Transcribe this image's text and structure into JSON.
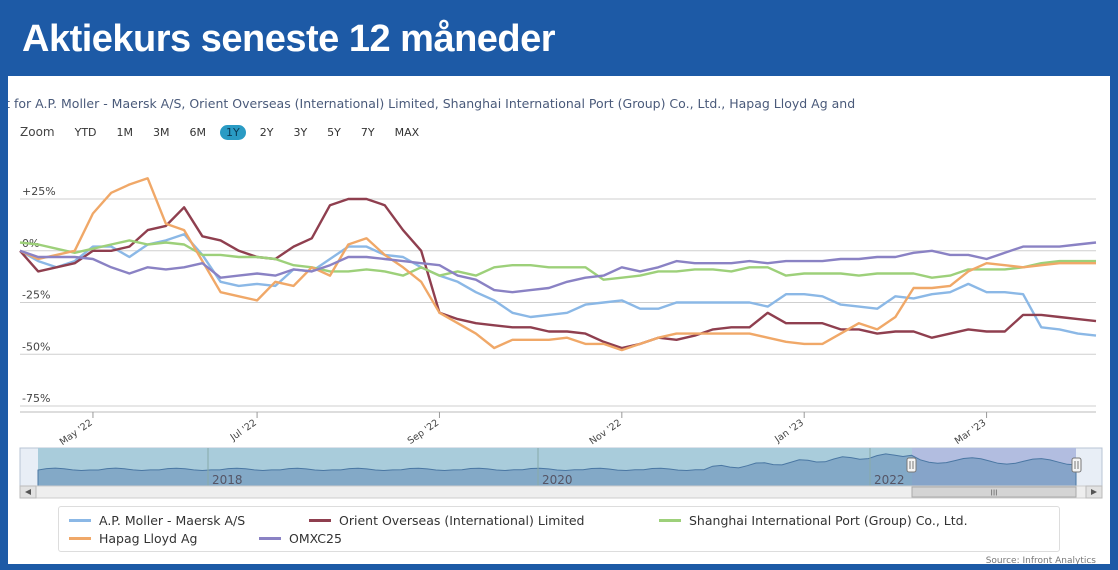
{
  "header": {
    "title": "Aktiekurs seneste 12 måneder"
  },
  "chart": {
    "heading": "rt for A.P. Moller - Maersk A/S, Orient Overseas (International) Limited, Shanghai International Port (Group) Co., Ltd., Hapag Lloyd Ag and",
    "zoom_label": "Zoom",
    "zoom_buttons": [
      {
        "label": "YTD",
        "active": false
      },
      {
        "label": "1M",
        "active": false
      },
      {
        "label": "3M",
        "active": false
      },
      {
        "label": "6M",
        "active": false
      },
      {
        "label": "1Y",
        "active": true
      },
      {
        "label": "2Y",
        "active": false
      },
      {
        "label": "3Y",
        "active": false
      },
      {
        "label": "5Y",
        "active": false
      },
      {
        "label": "7Y",
        "active": false
      },
      {
        "label": "MAX",
        "active": false
      }
    ],
    "source": "Source: Infront Analytics",
    "navigator": {
      "year_labels": [
        "2018",
        "2020",
        "2022"
      ],
      "scroll_glyph": "III"
    }
  },
  "chart_data": {
    "type": "line",
    "ylim": [
      -80,
      45
    ],
    "y_ticks": [
      {
        "value": 25,
        "label": "+25%"
      },
      {
        "value": 0,
        "label": "0%"
      },
      {
        "value": -25,
        "label": "-25%"
      },
      {
        "value": -50,
        "label": "-50%"
      },
      {
        "value": -75,
        "label": "-75%"
      }
    ],
    "x_ticks": [
      "May '22",
      "Jul '22",
      "Sep '22",
      "Nov '22",
      "Jan '23",
      "Mar '23"
    ],
    "x_tick_positions": [
      4,
      13,
      23,
      33,
      43,
      53
    ],
    "x_max": 59,
    "series": [
      {
        "name": "A.P. Moller - Maersk A/S",
        "color": "#8bb8e6",
        "values": [
          0,
          -5,
          -8,
          -5,
          2,
          2,
          -3,
          3,
          5,
          8,
          -2,
          -15,
          -17,
          -16,
          -17,
          -9,
          -10,
          -4,
          2,
          2,
          -2,
          -3,
          -8,
          -12,
          -15,
          -20,
          -24,
          -30,
          -32,
          -31,
          -30,
          -26,
          -25,
          -24,
          -28,
          -28,
          -25,
          -25,
          -25,
          -25,
          -25,
          -27,
          -21,
          -21,
          -22,
          -26,
          -27,
          -28,
          -22,
          -23,
          -21,
          -20,
          -16,
          -20,
          -20,
          -21,
          -37,
          -38,
          -40,
          -41
        ]
      },
      {
        "name": "Orient Overseas (International) Limited",
        "color": "#8f3f4f",
        "values": [
          0,
          -10,
          -8,
          -6,
          0,
          0,
          2,
          10,
          12,
          21,
          7,
          5,
          0,
          -3,
          -4,
          2,
          6,
          22,
          25,
          25,
          22,
          10,
          0,
          -30,
          -33,
          -35,
          -36,
          -37,
          -37,
          -39,
          -39,
          -40,
          -44,
          -47,
          -45,
          -42,
          -43,
          -41,
          -38,
          -37,
          -37,
          -30,
          -35,
          -35,
          -35,
          -38,
          -38,
          -40,
          -39,
          -39,
          -42,
          -40,
          -38,
          -39,
          -39,
          -31,
          -31,
          -32,
          -33,
          -34
        ]
      },
      {
        "name": "Shanghai International Port (Group) Co., Ltd.",
        "color": "#9dd07a",
        "values": [
          4,
          3,
          1,
          -1,
          1,
          3,
          5,
          3,
          4,
          3,
          -2,
          -2,
          -3,
          -3,
          -4,
          -7,
          -8,
          -10,
          -10,
          -9,
          -10,
          -12,
          -8,
          -12,
          -10,
          -12,
          -8,
          -7,
          -7,
          -8,
          -8,
          -8,
          -14,
          -13,
          -12,
          -10,
          -10,
          -9,
          -9,
          -10,
          -8,
          -8,
          -12,
          -11,
          -11,
          -11,
          -12,
          -11,
          -11,
          -11,
          -13,
          -12,
          -9,
          -9,
          -9,
          -8,
          -6,
          -5,
          -5,
          -5
        ]
      },
      {
        "name": "Hapag Lloyd Ag",
        "color": "#f0a868",
        "values": [
          0,
          -4,
          -2,
          0,
          18,
          28,
          32,
          35,
          13,
          10,
          -5,
          -20,
          -22,
          -24,
          -15,
          -17,
          -8,
          -12,
          3,
          6,
          -2,
          -8,
          -15,
          -30,
          -35,
          -40,
          -47,
          -43,
          -43,
          -43,
          -42,
          -45,
          -45,
          -48,
          -45,
          -42,
          -40,
          -40,
          -40,
          -40,
          -40,
          -42,
          -44,
          -45,
          -45,
          -40,
          -35,
          -38,
          -32,
          -18,
          -18,
          -17,
          -10,
          -6,
          -7,
          -8,
          -7,
          -6,
          -6,
          -6
        ]
      },
      {
        "name": "OMXC25",
        "color": "#8a82c4",
        "values": [
          0,
          -3,
          -3,
          -3,
          -4,
          -8,
          -11,
          -8,
          -9,
          -8,
          -6,
          -13,
          -12,
          -11,
          -12,
          -9,
          -10,
          -7,
          -3,
          -3,
          -4,
          -5,
          -6,
          -7,
          -12,
          -14,
          -19,
          -20,
          -19,
          -18,
          -15,
          -13,
          -12,
          -8,
          -10,
          -8,
          -5,
          -6,
          -6,
          -6,
          -5,
          -6,
          -5,
          -5,
          -5,
          -4,
          -4,
          -3,
          -3,
          -1,
          0,
          -2,
          -2,
          -4,
          -1,
          2,
          2,
          2,
          3,
          4
        ]
      }
    ]
  }
}
